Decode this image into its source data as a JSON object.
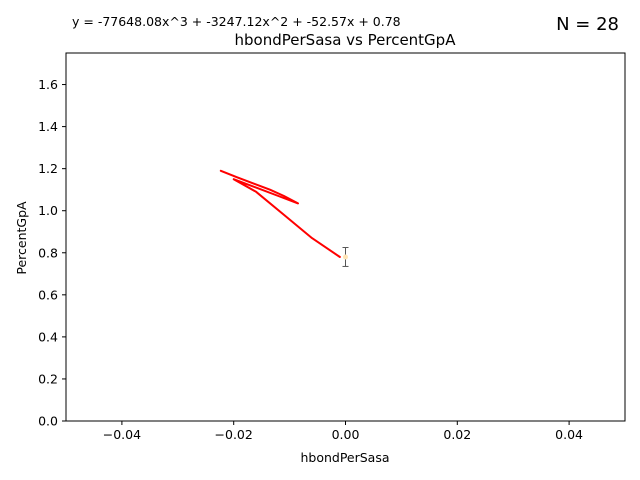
{
  "chart_data": {
    "type": "line",
    "title": "hbondPerSasa vs PercentGpA",
    "equation": "y = -77648.08x^3 + -3247.12x^2 + -52.57x + 0.78",
    "n_label": "N = 28",
    "xlabel": "hbondPerSasa",
    "ylabel": "PercentGpA",
    "xlim": [
      -0.05,
      0.05
    ],
    "ylim": [
      0.0,
      1.75
    ],
    "xticks": [
      -0.04,
      -0.02,
      0.0,
      0.02,
      0.04
    ],
    "xtick_labels": [
      "−0.04",
      "−0.02",
      "0.00",
      "0.02",
      "0.04"
    ],
    "yticks": [
      0.0,
      0.2,
      0.4,
      0.6,
      0.8,
      1.0,
      1.2,
      1.4,
      1.6
    ],
    "ytick_labels": [
      "0.0",
      "0.2",
      "0.4",
      "0.6",
      "0.8",
      "1.0",
      "1.2",
      "1.4",
      "1.6"
    ],
    "grid": false,
    "fit_color": "#ff0000",
    "point_color": "#ffe4b5",
    "errorbar_color": "#555555",
    "fit_line": {
      "x": [
        -0.0223,
        -0.0195,
        -0.0165,
        -0.0135,
        -0.011,
        -0.0085,
        -0.012,
        -0.016,
        -0.02,
        -0.016,
        -0.011,
        -0.006,
        -0.001
      ],
      "y": [
        1.19,
        1.16,
        1.13,
        1.1,
        1.07,
        1.035,
        1.07,
        1.11,
        1.15,
        1.09,
        0.98,
        0.87,
        0.78
      ]
    },
    "points": [
      {
        "x": 0.0,
        "y": 0.78,
        "yerr": 0.045
      }
    ]
  }
}
